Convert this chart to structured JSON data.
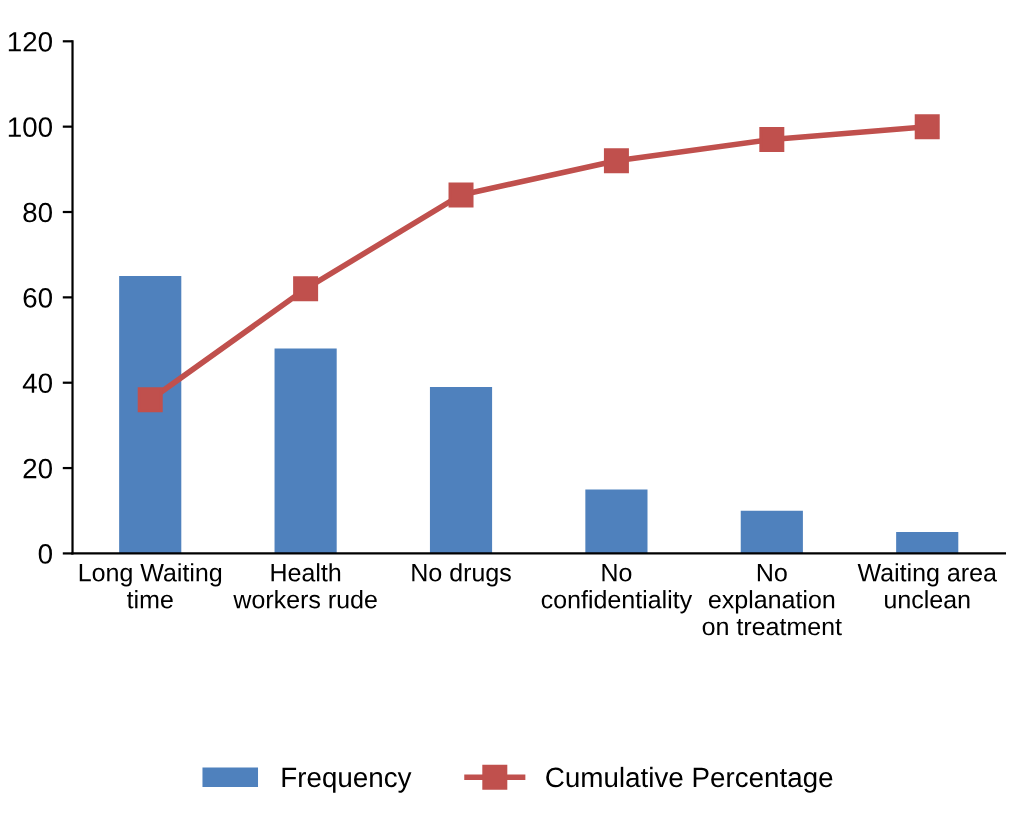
{
  "chart_data": {
    "type": "bar",
    "categories": [
      "Long Waiting\ntime",
      "Health\nworkers rude",
      "No drugs",
      "No\nconfidentiality",
      "No\nexplanation\non treatment",
      "Waiting area\nunclean"
    ],
    "series": [
      {
        "name": "Frequency",
        "color": "#4f81bd",
        "values": [
          65,
          48,
          39,
          15,
          10,
          5
        ]
      },
      {
        "name": "Cumulative Percentage",
        "type": "line",
        "color": "#c0504d",
        "marker": "square",
        "values": [
          36,
          62,
          84,
          92,
          97,
          100
        ]
      }
    ],
    "ylim": [
      0,
      120
    ],
    "yticks": [
      0,
      20,
      40,
      60,
      80,
      100,
      120
    ],
    "grid": false,
    "legend": "bottom"
  }
}
